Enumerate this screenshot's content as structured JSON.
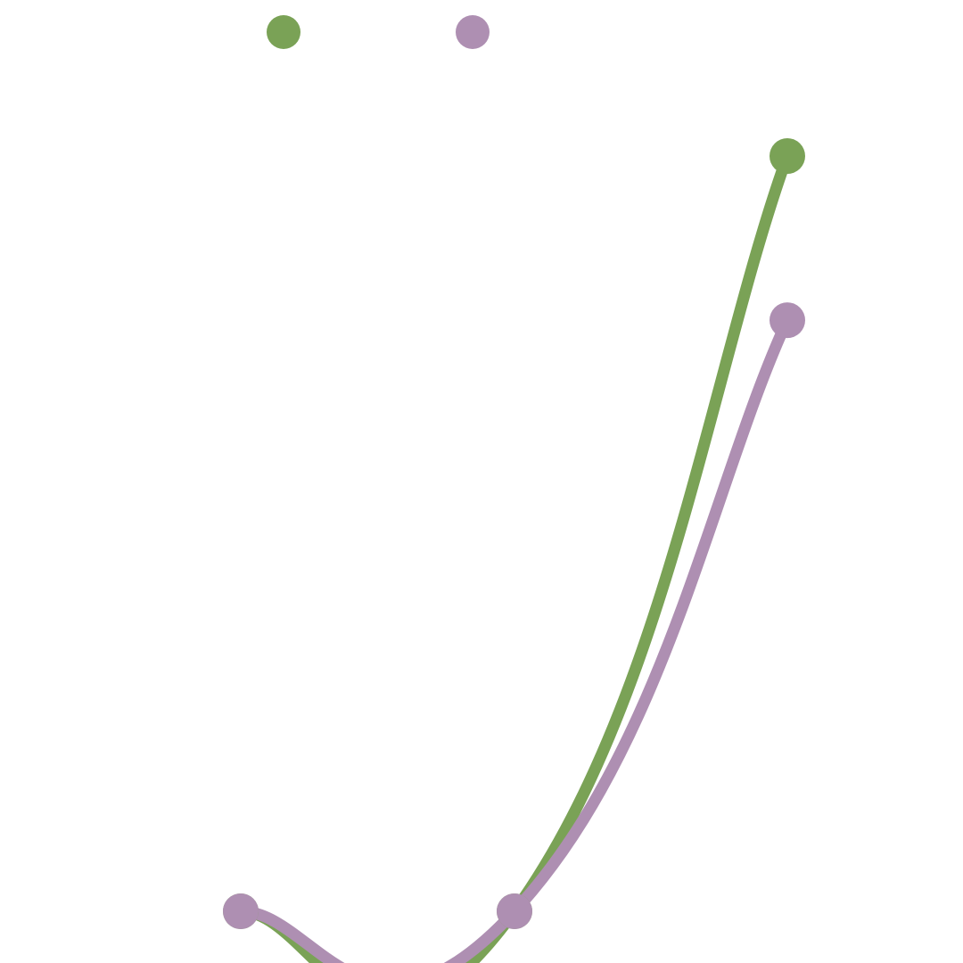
{
  "chart_data": {
    "type": "line",
    "smooth": true,
    "grid": false,
    "legend": "top-center",
    "categories": [
      "",
      "",
      ""
    ],
    "series": [
      {
        "values": [
          0,
          0,
          92
        ],
        "color": "#7aa256"
      },
      {
        "values": [
          0,
          0,
          72
        ],
        "color": "#ae8fb2"
      }
    ],
    "ylim": [
      0,
      100
    ]
  }
}
